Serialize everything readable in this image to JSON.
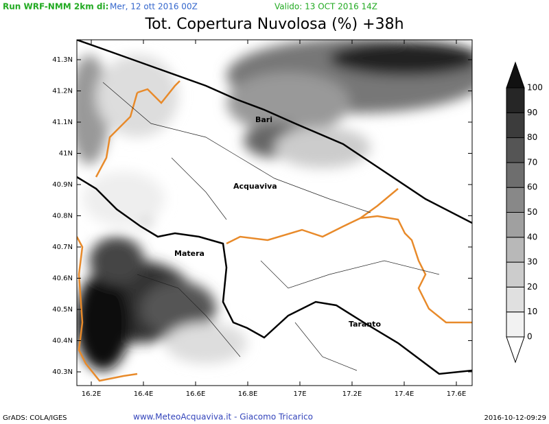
{
  "header": {
    "run": "Run WRF-NMM 2km di:",
    "init": "Mer, 12 ott 2016 00Z",
    "valid": "Valido: 13 OCT 2016 14Z"
  },
  "title": "Tot. Copertura Nuvolosa (%) +38h",
  "map": {
    "lat_labels": [
      "41.3N",
      "41.2N",
      "41.1N",
      "41N",
      "40.9N",
      "40.8N",
      "40.7N",
      "40.6N",
      "40.5N",
      "40.4N",
      "40.3N"
    ],
    "lon_labels": [
      "16.2E",
      "16.4E",
      "16.6E",
      "16.8E",
      "17E",
      "17.2E",
      "17.4E",
      "17.6E"
    ],
    "cities": [
      "Bari",
      "Acquaviva",
      "Matera",
      "Taranto"
    ]
  },
  "colorbar": {
    "levels": [
      0,
      10,
      20,
      30,
      40,
      50,
      60,
      70,
      80,
      90,
      100
    ],
    "colors": [
      "#ffffff",
      "#f2f2f2",
      "#e0e0e0",
      "#cccccc",
      "#b8b8b8",
      "#a0a0a0",
      "#888888",
      "#6e6e6e",
      "#555555",
      "#3c3c3c",
      "#262626",
      "#111111"
    ]
  },
  "footer": {
    "left": "GrADS: COLA/IGES",
    "center": "www.MeteoAcquaviva.it  -  Giacomo Tricarico",
    "right": "2016-10-12-09:29"
  }
}
